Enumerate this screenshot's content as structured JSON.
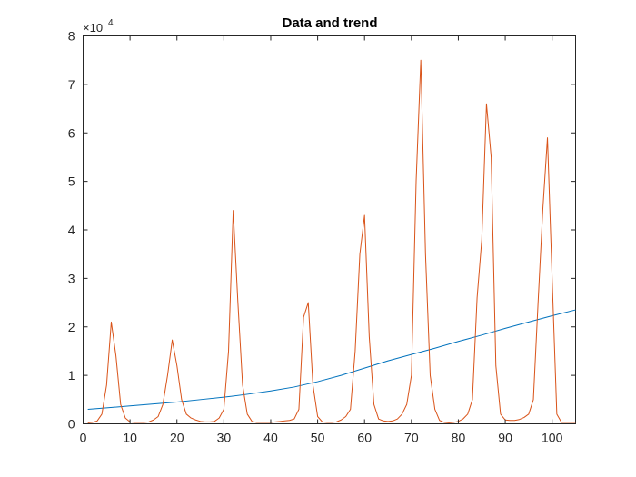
{
  "chart_data": {
    "type": "line",
    "title": "Data and trend",
    "xlabel": "",
    "ylabel": "",
    "xlim": [
      0,
      105
    ],
    "ylim": [
      0,
      80000
    ],
    "x_ticks": [
      0,
      10,
      20,
      30,
      40,
      50,
      60,
      70,
      80,
      90,
      100
    ],
    "y_ticks": [
      0,
      10000,
      20000,
      30000,
      40000,
      50000,
      60000,
      70000,
      80000
    ],
    "x_tick_labels": [
      "0",
      "10",
      "20",
      "30",
      "40",
      "50",
      "60",
      "70",
      "80",
      "90",
      "100"
    ],
    "y_tick_labels": [
      "0",
      "1",
      "2",
      "3",
      "4",
      "5",
      "6",
      "7",
      "8"
    ],
    "y_exponent_label": "×10",
    "y_exponent_power": "4",
    "grid": false,
    "legend": "none",
    "series": [
      {
        "color": "#0072BD",
        "x": [
          1,
          5,
          10,
          15,
          20,
          25,
          30,
          35,
          40,
          45,
          50,
          55,
          60,
          65,
          70,
          75,
          80,
          85,
          90,
          95,
          100,
          105
        ],
        "y": [
          3000,
          3300,
          3700,
          4100,
          4500,
          5000,
          5500,
          6100,
          6800,
          7600,
          8700,
          10000,
          11500,
          13000,
          14300,
          15600,
          17000,
          18300,
          19700,
          21000,
          22300,
          23500
        ]
      },
      {
        "color": "#D95319",
        "x": [
          1,
          2,
          3,
          4,
          5,
          6,
          7,
          8,
          9,
          10,
          11,
          12,
          13,
          14,
          15,
          16,
          17,
          18,
          19,
          20,
          21,
          22,
          23,
          24,
          25,
          26,
          27,
          28,
          29,
          30,
          31,
          32,
          33,
          34,
          35,
          36,
          37,
          38,
          39,
          40,
          41,
          42,
          43,
          44,
          45,
          46,
          47,
          48,
          49,
          50,
          51,
          52,
          53,
          54,
          55,
          56,
          57,
          58,
          59,
          60,
          61,
          62,
          63,
          64,
          65,
          66,
          67,
          68,
          69,
          70,
          71,
          72,
          73,
          74,
          75,
          76,
          77,
          78,
          79,
          80,
          81,
          82,
          83,
          84,
          85,
          86,
          87,
          88,
          89,
          90,
          91,
          92,
          93,
          94,
          95,
          96,
          97,
          98,
          99,
          100,
          101,
          102,
          103,
          104,
          105
        ],
        "y": [
          200,
          300,
          600,
          2000,
          8000,
          21000,
          14000,
          4000,
          1200,
          400,
          300,
          300,
          300,
          400,
          800,
          1500,
          4000,
          10000,
          17300,
          12000,
          5000,
          2000,
          1200,
          800,
          500,
          400,
          400,
          500,
          1200,
          3000,
          15000,
          44000,
          25000,
          8000,
          2000,
          500,
          300,
          300,
          300,
          300,
          400,
          500,
          600,
          700,
          1000,
          3000,
          22000,
          25000,
          8000,
          1500,
          400,
          300,
          300,
          400,
          800,
          1500,
          3000,
          15000,
          35000,
          43000,
          18000,
          4000,
          1000,
          600,
          500,
          600,
          1000,
          2000,
          4000,
          10000,
          50000,
          75000,
          35000,
          10000,
          3000,
          700,
          300,
          200,
          300,
          500,
          1000,
          2000,
          5000,
          26000,
          38000,
          66000,
          55000,
          12000,
          2000,
          800,
          700,
          700,
          900,
          1300,
          2000,
          5000,
          25000,
          44000,
          59000,
          30000,
          2000,
          300,
          300,
          300,
          300
        ]
      }
    ]
  }
}
